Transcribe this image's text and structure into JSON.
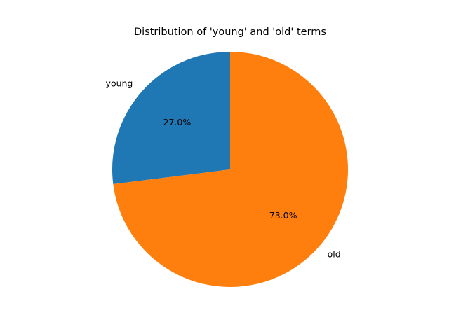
{
  "chart_data": {
    "type": "pie",
    "title": "Distribution of 'young' and 'old' terms",
    "labels": [
      "young",
      "old"
    ],
    "values": [
      27.0,
      73.0
    ],
    "percent_labels": [
      "27.0%",
      "73.0%"
    ],
    "colors": [
      "#1f77b4",
      "#ff7f0e"
    ],
    "start_angle_deg": 90,
    "direction": "counterclockwise",
    "legend": "none"
  }
}
